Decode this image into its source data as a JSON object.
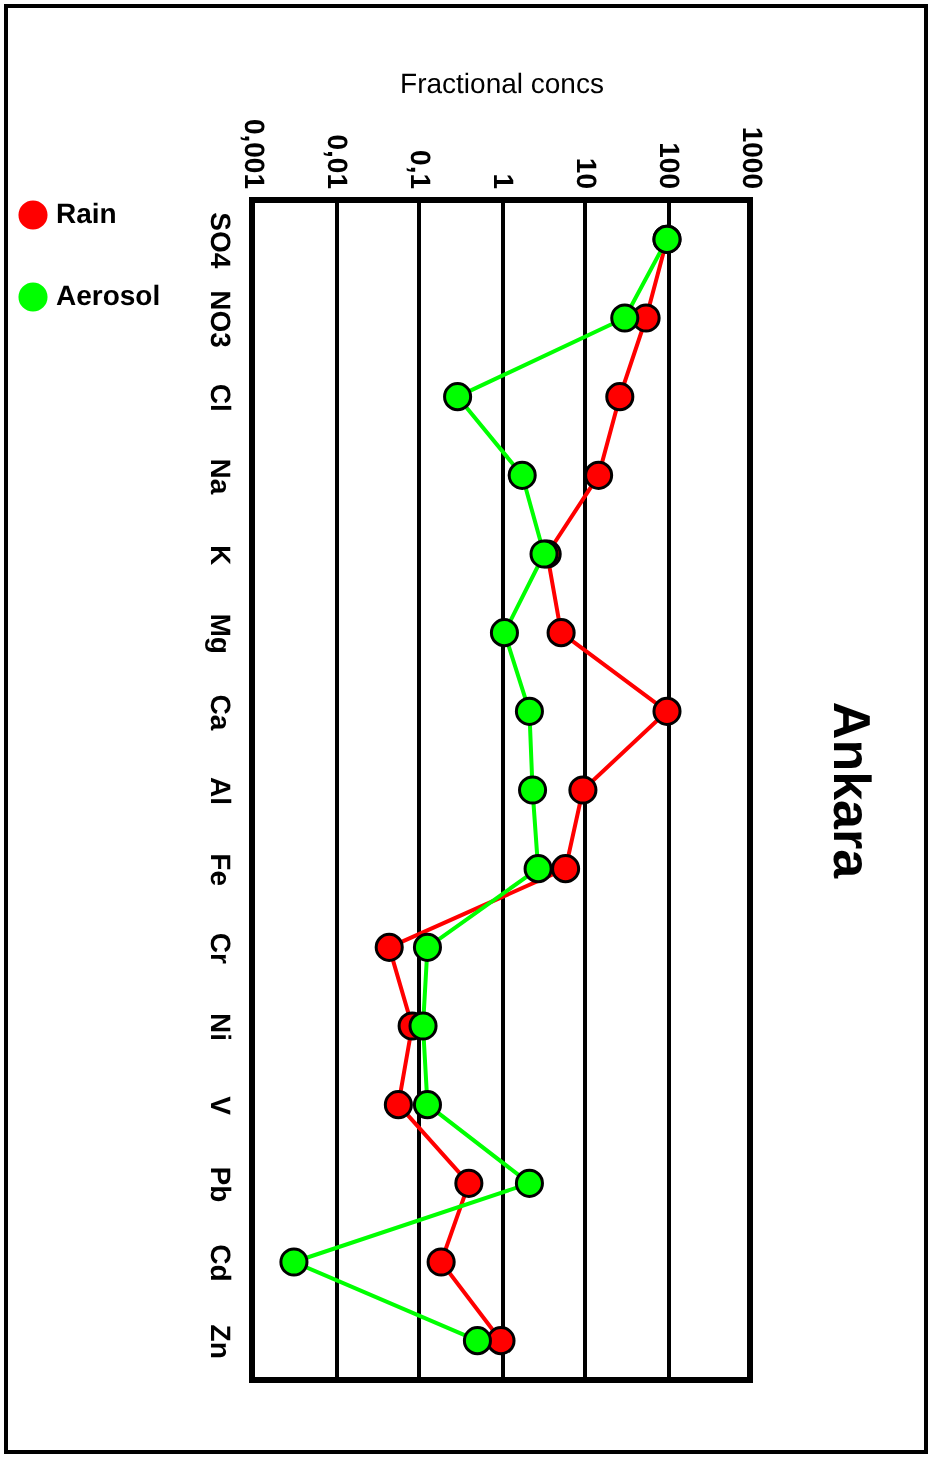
{
  "chart_data": {
    "type": "line",
    "orientation": "horizontal",
    "title": "Ankara",
    "xlabel": "Fractional concs",
    "categories": [
      "SO4",
      "NO3",
      "Cl",
      "Na",
      "K",
      "Mg",
      "Ca",
      "Al",
      "Fe",
      "Cr",
      "Ni",
      "V",
      "Pb",
      "Cd",
      "Zn"
    ],
    "series": [
      {
        "name": "Rain",
        "color": "#ff0000",
        "values": [
          100,
          56,
          27,
          15,
          3.6,
          5.3,
          100,
          9.7,
          6,
          0.045,
          0.085,
          0.058,
          0.41,
          0.19,
          1.0
        ]
      },
      {
        "name": "Aerosol",
        "color": "#00ff00",
        "values": [
          100,
          31,
          0.3,
          1.8,
          3.3,
          1.1,
          2.2,
          2.4,
          2.8,
          0.13,
          0.115,
          0.13,
          2.2,
          0.0032,
          0.52
        ]
      }
    ],
    "log": "x",
    "xlim": [
      0.001,
      1000
    ],
    "xticks": [
      {
        "value": 0.001,
        "label": "0,001"
      },
      {
        "value": 0.01,
        "label": "0,01"
      },
      {
        "value": 0.1,
        "label": "0,1"
      },
      1,
      10,
      100,
      1000
    ],
    "grid": "x",
    "legend": "left",
    "marker": "circle"
  }
}
